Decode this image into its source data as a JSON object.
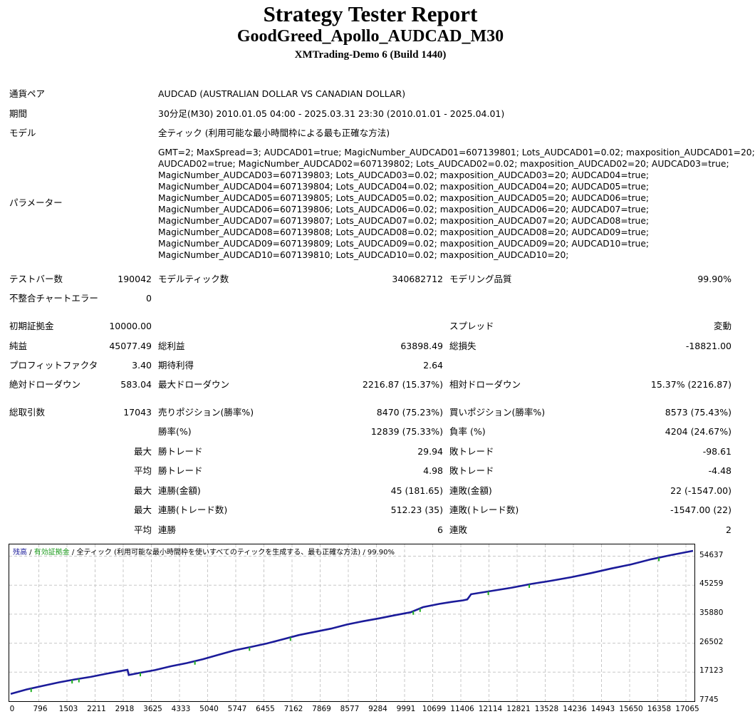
{
  "header": {
    "title": "Strategy Tester Report",
    "ea_name": "GoodGreed_Apollo_AUDCAD_M30",
    "server": "XMTrading-Demo 6 (Build 1440)"
  },
  "info": {
    "symbol_label": "通貨ペア",
    "symbol_value": "AUDCAD (AUSTRALIAN DOLLAR VS CANADIAN DOLLAR)",
    "period_label": "期間",
    "period_value": "30分足(M30) 2010.01.05 04:00 - 2025.03.31 23:30 (2010.01.01 - 2025.04.01)",
    "model_label": "モデル",
    "model_value": "全ティック (利用可能な最小時間枠による最も正確な方法)",
    "params_label": "パラメーター",
    "params_lines": [
      "GMT=2; MaxSpread=3; AUDCAD01=true; MagicNumber_AUDCAD01=607139801; Lots_AUDCAD01=0.02; maxposition_AUDCAD01=20;",
      "AUDCAD02=true; MagicNumber_AUDCAD02=607139802; Lots_AUDCAD02=0.02; maxposition_AUDCAD02=20; AUDCAD03=true;",
      "MagicNumber_AUDCAD03=607139803; Lots_AUDCAD03=0.02; maxposition_AUDCAD03=20; AUDCAD04=true;",
      "MagicNumber_AUDCAD04=607139804; Lots_AUDCAD04=0.02; maxposition_AUDCAD04=20; AUDCAD05=true;",
      "MagicNumber_AUDCAD05=607139805; Lots_AUDCAD05=0.02; maxposition_AUDCAD05=20; AUDCAD06=true;",
      "MagicNumber_AUDCAD06=607139806; Lots_AUDCAD06=0.02; maxposition_AUDCAD06=20; AUDCAD07=true;",
      "MagicNumber_AUDCAD07=607139807; Lots_AUDCAD07=0.02; maxposition_AUDCAD07=20; AUDCAD08=true;",
      "MagicNumber_AUDCAD08=607139808; Lots_AUDCAD08=0.02; maxposition_AUDCAD08=20; AUDCAD09=true;",
      "MagicNumber_AUDCAD09=607139809; Lots_AUDCAD09=0.02; maxposition_AUDCAD09=20; AUDCAD10=true;",
      "MagicNumber_AUDCAD10=607139810; Lots_AUDCAD10=0.02; maxposition_AUDCAD10=20;"
    ]
  },
  "stats": {
    "bars_label": "テストバー数",
    "bars_value": "190042",
    "ticks_label": "モデルティック数",
    "ticks_value": "340682712",
    "quality_label": "モデリング品質",
    "quality_value": "99.90%",
    "mismatch_label": "不整合チャートエラー",
    "mismatch_value": "0",
    "deposit_label": "初期証拠金",
    "deposit_value": "10000.00",
    "spread_label": "スプレッド",
    "spread_value": "変動",
    "net_label": "純益",
    "net_value": "45077.49",
    "gross_profit_label": "総利益",
    "gross_profit_value": "63898.49",
    "gross_loss_label": "総損失",
    "gross_loss_value": "-18821.00",
    "pf_label": "プロフィットファクタ",
    "pf_value": "3.40",
    "expected_label": "期待利得",
    "expected_value": "2.64",
    "abs_dd_label": "絶対ドローダウン",
    "abs_dd_value": "583.04",
    "max_dd_label": "最大ドローダウン",
    "max_dd_value": "2216.87 (15.37%)",
    "rel_dd_label": "相対ドローダウン",
    "rel_dd_value": "15.37% (2216.87)",
    "trades_label": "総取引数",
    "trades_value": "17043",
    "short_label": "売りポジション(勝率%)",
    "short_value": "8470 (75.23%)",
    "long_label": "買いポジション(勝率%)",
    "long_value": "8573 (75.43%)",
    "win_rate_label": "勝率(%)",
    "win_rate_value": "12839 (75.33%)",
    "loss_rate_label": "負率 (%)",
    "loss_rate_value": "4204 (24.67%)",
    "max_label": "最大",
    "avg_label": "平均",
    "win_trade_label": "勝トレード",
    "loss_trade_label": "敗トレード",
    "max_win_value": "29.94",
    "max_loss_value": "-98.61",
    "avg_win_value": "4.98",
    "avg_loss_value": "-4.48",
    "cons_win_amt_label": "連勝(金額)",
    "cons_win_amt_value": "45 (181.65)",
    "cons_loss_amt_label": "連敗(金額)",
    "cons_loss_amt_value": "22 (-1547.00)",
    "cons_win_cnt_label": "連勝(トレード数)",
    "cons_win_cnt_value": "512.23 (35)",
    "cons_loss_cnt_label": "連敗(トレード数)",
    "cons_loss_cnt_value": "-1547.00 (22)",
    "avg_cons_win_label": "連勝",
    "avg_cons_win_value": "6",
    "avg_cons_loss_label": "連敗",
    "avg_cons_loss_value": "2"
  },
  "chart_data": {
    "type": "line",
    "legend": {
      "balance": "残高",
      "sep1": " / ",
      "equity": "有効証拠金",
      "sep2": " / ",
      "model": "全ティック (利用可能な最小時間枠を使いすべてのティックを生成する、最も正確な方法)",
      "sep3": " / ",
      "quality": "99.90%"
    },
    "x_ticks": [
      "0",
      "796",
      "1503",
      "2211",
      "2918",
      "3625",
      "4333",
      "5040",
      "5747",
      "6455",
      "7162",
      "7869",
      "8577",
      "9284",
      "9991",
      "10699",
      "11406",
      "12114",
      "12821",
      "13528",
      "14236",
      "14943",
      "15650",
      "16358",
      "17065"
    ],
    "y_ticks": [
      "54637",
      "45259",
      "35880",
      "26502",
      "17123",
      "7745"
    ],
    "xlim": [
      0,
      17043
    ],
    "ylim": [
      7745,
      56500
    ],
    "colors": {
      "balance": "#1b1b9a",
      "equity": "#1fb01f",
      "grid": "#c8c8c8"
    },
    "series": [
      {
        "name": "残高",
        "x": [
          0,
          400,
          800,
          1200,
          1600,
          2000,
          2400,
          2700,
          2918,
          2950,
          3200,
          3600,
          4000,
          4400,
          4800,
          5200,
          5600,
          6000,
          6400,
          6800,
          7200,
          7600,
          8000,
          8400,
          8800,
          9200,
          9600,
          9991,
          10300,
          10700,
          11000,
          11300,
          11406,
          11500,
          12000,
          12500,
          13000,
          13500,
          14000,
          14500,
          15000,
          15500,
          16000,
          16500,
          17043
        ],
        "y": [
          10000,
          11400,
          12500,
          13600,
          14500,
          15300,
          16300,
          17000,
          17500,
          15900,
          16500,
          17400,
          18600,
          19600,
          20800,
          22200,
          23600,
          24600,
          25700,
          27000,
          28300,
          29300,
          30300,
          31600,
          32600,
          33500,
          34500,
          35400,
          37000,
          38000,
          38600,
          39100,
          39400,
          41000,
          42000,
          43000,
          44200,
          45200,
          46300,
          47600,
          49000,
          50300,
          51900,
          53200,
          54500
        ]
      }
    ]
  }
}
